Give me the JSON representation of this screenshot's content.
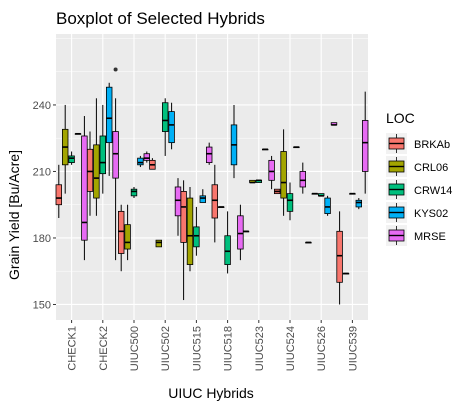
{
  "chart_data": {
    "type": "boxplot",
    "title": "Boxplot of Selected Hybrids",
    "xlabel": "UIUC Hybrids",
    "ylabel": "Grain Yield [Bu/Acre]",
    "ylim": [
      143,
      272
    ],
    "yticks": [
      150,
      180,
      210,
      240
    ],
    "grid": true,
    "legend": {
      "title": "LOC",
      "position": "right"
    },
    "categories": [
      "CHECK1",
      "CHECK2",
      "UIUC500",
      "UIUC502",
      "UIUC515",
      "UIUC518",
      "UIUC523",
      "UIUC524",
      "UIUC526",
      "UIUC539"
    ],
    "series": [
      {
        "name": "BRKAb",
        "color": "#F8766D",
        "boxes": [
          {
            "cat": 0,
            "min": 189,
            "q1": 195,
            "median": 198,
            "q3": 204,
            "max": 213
          },
          {
            "cat": 1,
            "min": 190,
            "q1": 201,
            "median": 210,
            "q3": 220,
            "max": 228
          },
          {
            "cat": 2,
            "min": 165,
            "q1": 173,
            "median": 183,
            "q3": 192,
            "max": 195
          },
          {
            "cat": 3,
            "min": 211,
            "q1": 211,
            "median": 213,
            "q3": 215,
            "max": 216
          },
          {
            "cat": 4,
            "min": 152,
            "q1": 178,
            "median": 194,
            "q3": 201,
            "max": 206
          },
          {
            "cat": 5,
            "min": 178,
            "q1": 189,
            "median": 197,
            "q3": 204,
            "max": 213
          },
          {
            "cat": 6,
            "min": 183,
            "q1": 183,
            "median": 183,
            "q3": 183,
            "max": 183
          },
          {
            "cat": 7,
            "min": 200,
            "q1": 200,
            "median": 201,
            "q3": 202,
            "max": 202
          },
          {
            "cat": 8,
            "min": 178,
            "q1": 178,
            "median": 178,
            "q3": 178,
            "max": 178
          },
          {
            "cat": 9,
            "min": 150,
            "q1": 160,
            "median": 172,
            "q3": 183,
            "max": 192
          }
        ]
      },
      {
        "name": "CRL06",
        "color": "#A3A500",
        "boxes": [
          {
            "cat": 0,
            "min": 200,
            "q1": 213,
            "median": 221,
            "q3": 229,
            "max": 240
          },
          {
            "cat": 1,
            "min": 190,
            "q1": 198,
            "median": 207,
            "q3": 222,
            "max": 243
          },
          {
            "cat": 2,
            "min": 170,
            "q1": 175,
            "median": 178,
            "q3": 186,
            "max": 195
          },
          {
            "cat": 3,
            "min": 176,
            "q1": 176,
            "median": 178,
            "q3": 179,
            "max": 179
          },
          {
            "cat": 4,
            "min": 165,
            "q1": 168,
            "median": 181,
            "q3": 198,
            "max": 203
          },
          {
            "cat": 5,
            "min": 194,
            "q1": 194,
            "median": 194,
            "q3": 194,
            "max": 194
          },
          {
            "cat": 6,
            "min": 205,
            "q1": 205,
            "median": 205,
            "q3": 206,
            "max": 206
          },
          {
            "cat": 7,
            "min": 190,
            "q1": 198,
            "median": 205,
            "q3": 219,
            "max": 229
          },
          {
            "cat": 8,
            "min": 200,
            "q1": 200,
            "median": 200,
            "q3": 200,
            "max": 200
          },
          {
            "cat": 9,
            "min": 164,
            "q1": 164,
            "median": 164,
            "q3": 164,
            "max": 164
          }
        ]
      },
      {
        "name": "CRW14",
        "color": "#00BF7D",
        "boxes": [
          {
            "cat": 0,
            "min": 213,
            "q1": 214,
            "median": 216,
            "q3": 217,
            "max": 219
          },
          {
            "cat": 1,
            "min": 200,
            "q1": 209,
            "median": 214,
            "q3": 226,
            "max": 240
          },
          {
            "cat": 2,
            "min": 198,
            "q1": 199,
            "median": 201,
            "q3": 202,
            "max": 203
          },
          {
            "cat": 3,
            "min": 217,
            "q1": 228,
            "median": 233,
            "q3": 241,
            "max": 243
          },
          {
            "cat": 4,
            "min": 172,
            "q1": 176,
            "median": 181,
            "q3": 185,
            "max": 194
          },
          {
            "cat": 5,
            "min": 164,
            "q1": 168,
            "median": 174,
            "q3": 181,
            "max": 192
          },
          {
            "cat": 6,
            "min": 205,
            "q1": 205,
            "median": 206,
            "q3": 206,
            "max": 206
          },
          {
            "cat": 7,
            "min": 188,
            "q1": 192,
            "median": 197,
            "q3": 200,
            "max": 205
          },
          {
            "cat": 8,
            "min": 199,
            "q1": 199,
            "median": 199,
            "q3": 200,
            "max": 200
          },
          {
            "cat": 9,
            "min": 200,
            "q1": 200,
            "median": 200,
            "q3": 200,
            "max": 200
          }
        ]
      },
      {
        "name": "KYS02",
        "color": "#00B0F6",
        "boxes": [
          {
            "cat": 0,
            "min": 227,
            "q1": 227,
            "median": 227,
            "q3": 227,
            "max": 227
          },
          {
            "cat": 1,
            "min": 208,
            "q1": 223,
            "median": 234,
            "q3": 248,
            "max": 250
          },
          {
            "cat": 2,
            "min": 212,
            "q1": 213,
            "median": 214,
            "q3": 216,
            "max": 217
          },
          {
            "cat": 3,
            "min": 220,
            "q1": 223,
            "median": 231,
            "q3": 237,
            "max": 241
          },
          {
            "cat": 4,
            "min": 196,
            "q1": 196,
            "median": 198,
            "q3": 199,
            "max": 202
          },
          {
            "cat": 5,
            "min": 207,
            "q1": 213,
            "median": 222,
            "q3": 231,
            "max": 240
          },
          {
            "cat": 6,
            "min": 220,
            "q1": 220,
            "median": 220,
            "q3": 220,
            "max": 220
          },
          {
            "cat": 7,
            "min": 221,
            "q1": 221,
            "median": 221,
            "q3": 221,
            "max": 221
          },
          {
            "cat": 8,
            "min": 190,
            "q1": 191,
            "median": 194,
            "q3": 198,
            "max": 199
          },
          {
            "cat": 9,
            "min": 193,
            "q1": 194,
            "median": 196,
            "q3": 197,
            "max": 198
          }
        ]
      },
      {
        "name": "MRSE",
        "color": "#E76BF3",
        "boxes": [
          {
            "cat": 0,
            "min": 170,
            "q1": 179,
            "median": 187,
            "q3": 226,
            "max": 235
          },
          {
            "cat": 1,
            "min": 170,
            "q1": 207,
            "median": 218,
            "q3": 228,
            "max": 243,
            "outliers": [
              256
            ]
          },
          {
            "cat": 2,
            "min": 214,
            "q1": 215,
            "median": 216,
            "q3": 218,
            "max": 219
          },
          {
            "cat": 3,
            "min": 181,
            "q1": 190,
            "median": 197,
            "q3": 203,
            "max": 207
          },
          {
            "cat": 4,
            "min": 213,
            "q1": 214,
            "median": 218,
            "q3": 221,
            "max": 223
          },
          {
            "cat": 5,
            "min": 170,
            "q1": 175,
            "median": 182,
            "q3": 190,
            "max": 195
          },
          {
            "cat": 6,
            "min": 202,
            "q1": 206,
            "median": 210,
            "q3": 215,
            "max": 217
          },
          {
            "cat": 7,
            "min": 200,
            "q1": 203,
            "median": 206,
            "q3": 210,
            "max": 214
          },
          {
            "cat": 8,
            "min": 231,
            "q1": 231,
            "median": 231,
            "q3": 232,
            "max": 232
          },
          {
            "cat": 9,
            "min": 200,
            "q1": 210,
            "median": 223,
            "q3": 233,
            "max": 246
          }
        ]
      }
    ]
  }
}
